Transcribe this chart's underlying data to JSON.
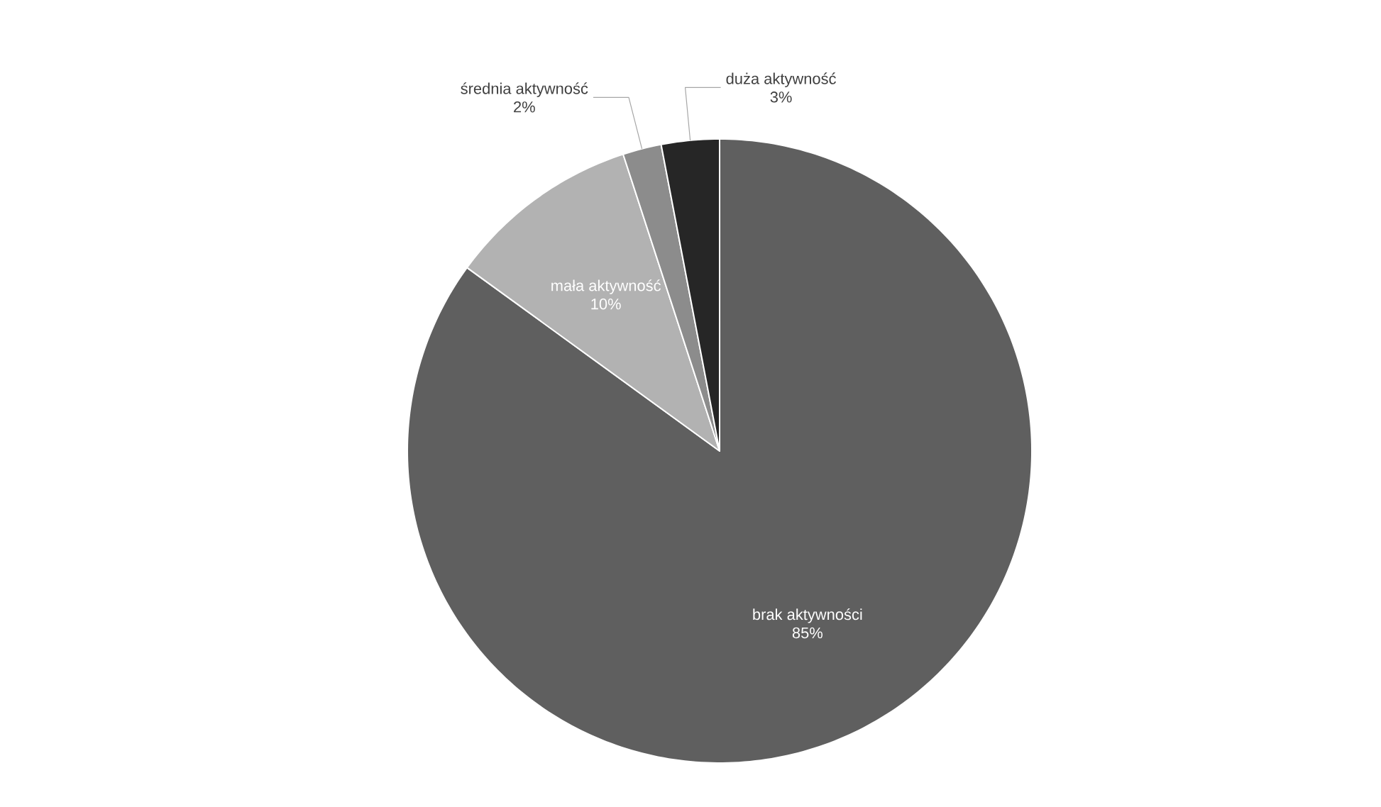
{
  "chart_data": {
    "type": "pie",
    "categories": [
      "brak aktywności",
      "mała aktywność",
      "średnia aktywność",
      "duża aktywność"
    ],
    "values": [
      85,
      10,
      2,
      3
    ],
    "colors": [
      "#5f5f5f",
      "#b2b2b2",
      "#8c8c8c",
      "#262626"
    ],
    "value_labels": [
      "85%",
      "10%",
      "2%",
      "3%"
    ]
  }
}
